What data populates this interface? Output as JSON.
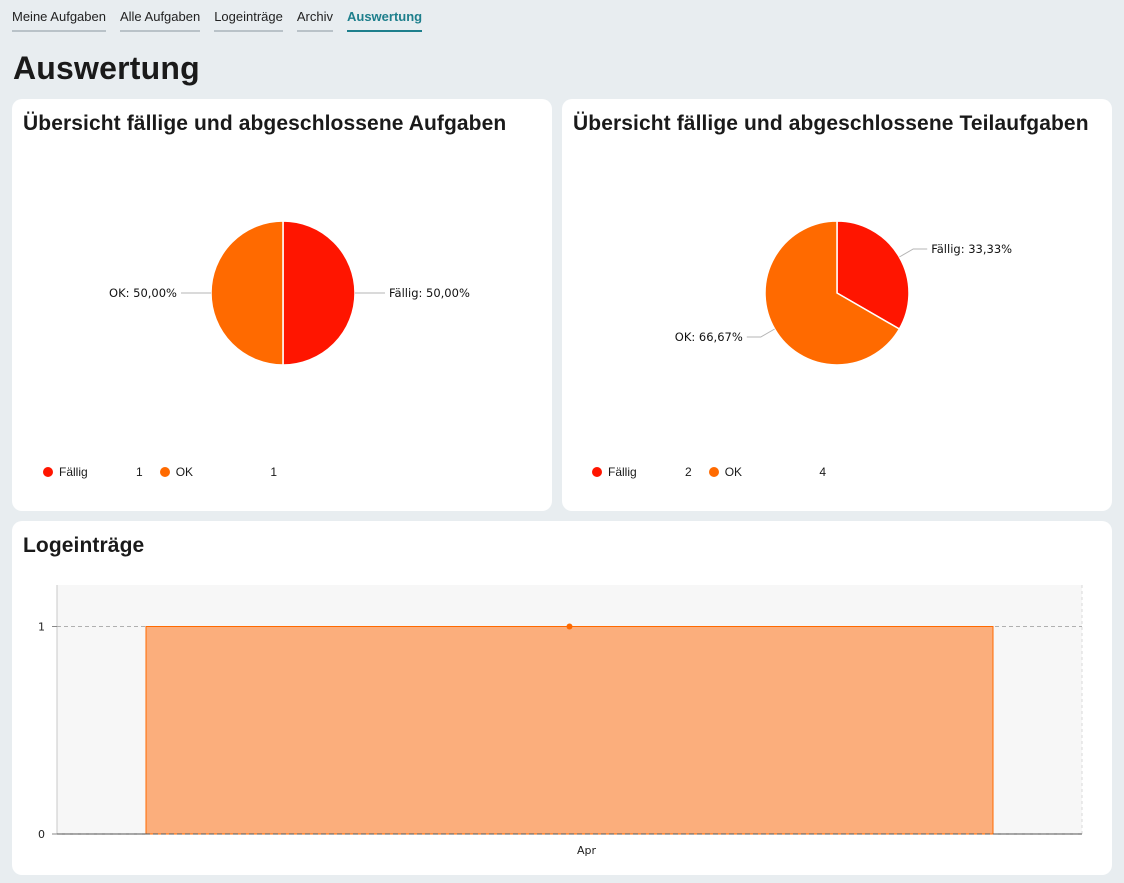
{
  "nav": {
    "tabs": [
      {
        "label": "Meine Aufgaben"
      },
      {
        "label": "Alle Aufgaben"
      },
      {
        "label": "Logeinträge"
      },
      {
        "label": "Archiv"
      },
      {
        "label": "Auswertung"
      }
    ],
    "active_index": 4
  },
  "page_title": "Auswertung",
  "colors": {
    "faellig": "#ff1500",
    "ok": "#ff6a00",
    "area_fill": "#fbae7c",
    "accent": "#1e7f8c"
  },
  "cards": {
    "tasks": {
      "title": "Übersicht fällige und abgeschlossene Aufgaben",
      "legend": [
        {
          "label": "Fällig",
          "count": "1"
        },
        {
          "label": "OK",
          "count": "1"
        }
      ]
    },
    "subtasks": {
      "title": "Übersicht fällige und abgeschlossene Teilaufgaben",
      "legend": [
        {
          "label": "Fällig",
          "count": "2"
        },
        {
          "label": "OK",
          "count": "4"
        }
      ]
    },
    "logs": {
      "title": "Logeinträge"
    }
  },
  "chart_data": [
    {
      "type": "pie",
      "categories": [
        "Fällig",
        "OK"
      ],
      "values": [
        1,
        1
      ],
      "labels": [
        "Fällig: 50,00%",
        "OK: 50,00%"
      ]
    },
    {
      "type": "pie",
      "categories": [
        "Fällig",
        "OK"
      ],
      "values": [
        2,
        4
      ],
      "labels": [
        "Fällig: 33,33%",
        "OK: 66,67%"
      ]
    },
    {
      "type": "area",
      "x": [
        "Apr"
      ],
      "series": [
        {
          "values": [
            1
          ]
        }
      ],
      "yticks": [
        "0",
        "1"
      ],
      "ylim": [
        0,
        1.2
      ],
      "grid": true
    }
  ]
}
